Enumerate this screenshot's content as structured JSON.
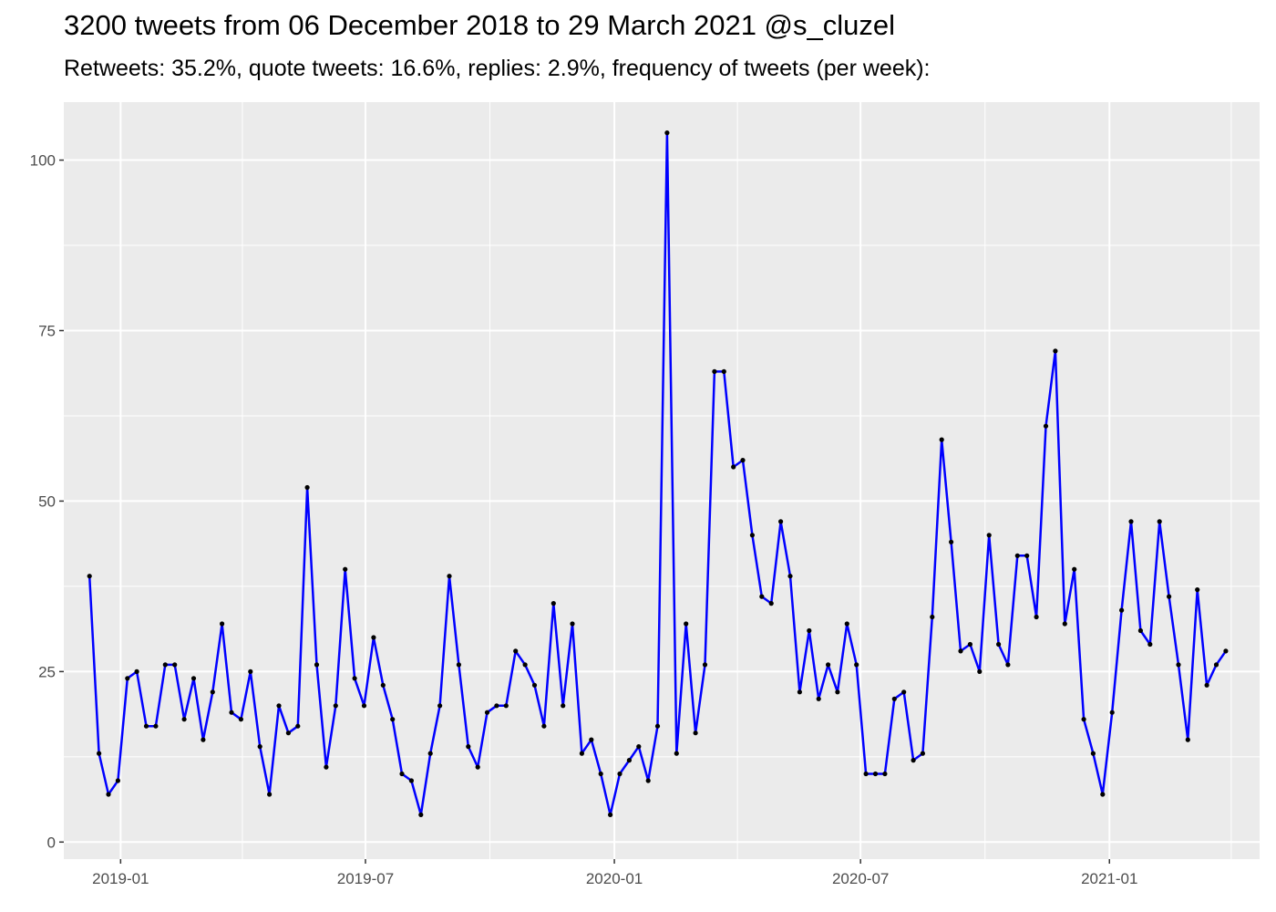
{
  "chart_data": {
    "type": "line",
    "title": "3200 tweets from 06 December 2018 to 29 March 2021 @s_cluzel",
    "subtitle": "Retweets: 35.2%, quote tweets: 16.6%, replies: 2.9%, frequency of tweets (per week):",
    "xlabel": "",
    "ylabel": "",
    "x_start": "2018-12-09",
    "x_step_days": 7,
    "values": [
      39,
      13,
      7,
      9,
      24,
      25,
      17,
      17,
      26,
      26,
      18,
      24,
      15,
      22,
      32,
      19,
      18,
      25,
      14,
      7,
      20,
      16,
      17,
      52,
      26,
      11,
      20,
      40,
      24,
      20,
      30,
      23,
      18,
      10,
      9,
      4,
      13,
      20,
      39,
      26,
      14,
      11,
      19,
      20,
      20,
      28,
      26,
      23,
      17,
      35,
      20,
      32,
      13,
      15,
      10,
      4,
      10,
      12,
      14,
      9,
      17,
      104,
      13,
      32,
      16,
      26,
      69,
      69,
      55,
      56,
      45,
      36,
      35,
      47,
      39,
      22,
      31,
      21,
      26,
      22,
      32,
      26,
      10,
      10,
      10,
      21,
      22,
      12,
      13,
      33,
      59,
      44,
      28,
      29,
      25,
      45,
      29,
      26,
      42,
      42,
      33,
      61,
      72,
      32,
      40,
      18,
      13,
      7,
      19,
      34,
      47,
      31,
      29,
      47,
      36,
      26,
      15,
      37,
      23,
      26,
      28
    ],
    "xlim": [
      "2018-11-20",
      "2021-04-22"
    ],
    "ylim": [
      -2.5,
      108.5
    ],
    "x_ticks": [
      {
        "date": "2019-01-01",
        "label": "2019-01"
      },
      {
        "date": "2019-07-01",
        "label": "2019-07"
      },
      {
        "date": "2020-01-01",
        "label": "2020-01"
      },
      {
        "date": "2020-07-01",
        "label": "2020-07"
      },
      {
        "date": "2021-01-01",
        "label": "2021-01"
      }
    ],
    "x_minor_ticks": [
      "2019-04-01",
      "2019-10-01",
      "2020-04-01",
      "2020-10-01",
      "2021-04-01"
    ],
    "y_ticks": [
      0,
      25,
      50,
      75,
      100
    ],
    "y_minor_ticks": [
      12.5,
      37.5,
      62.5,
      87.5
    ],
    "grid": true,
    "legend": "none",
    "colors": {
      "line": "#0000ff",
      "point": "#000000",
      "panel": "#ebebeb",
      "grid": "#ffffff",
      "tick_text": "#4d4d4d",
      "tick_mark": "#333333"
    }
  }
}
